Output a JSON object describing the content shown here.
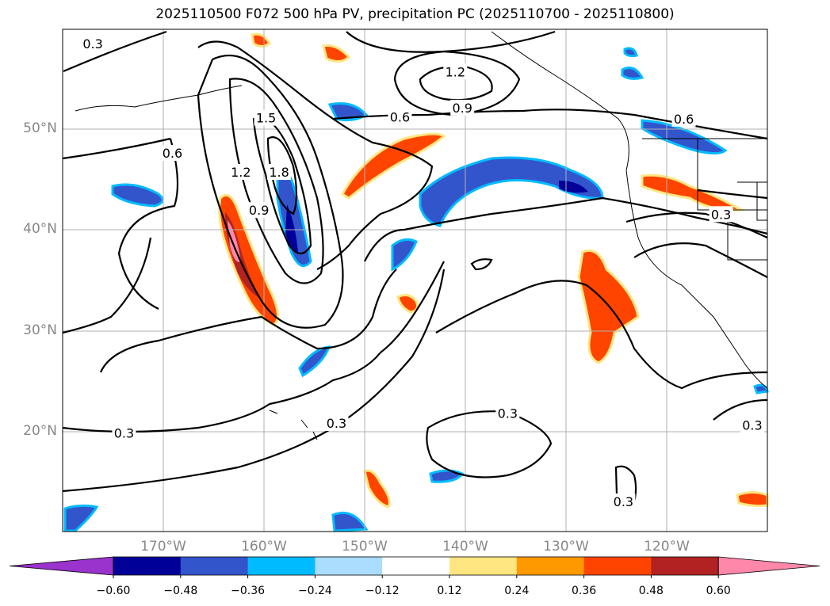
{
  "title": "2025110500 F072 500 hPa PV, precipitation PC (2025110700 - 2025110800)",
  "map": {
    "lat_ticks": [
      "50°N",
      "40°N",
      "30°N",
      "20°N"
    ],
    "lon_ticks": [
      "170°W",
      "160°W",
      "150°W",
      "140°W",
      "130°W",
      "120°W"
    ],
    "lat_values": [
      50,
      40,
      30,
      20
    ],
    "lon_values": [
      -170,
      -160,
      -150,
      -140,
      -130,
      -120
    ],
    "lat_range": [
      10,
      60
    ],
    "lon_range": [
      -180,
      -110
    ],
    "pv_contour_labels": [
      {
        "text": "0.3",
        "lon": -177,
        "lat": 58.6
      },
      {
        "text": "1.2",
        "lon": -141,
        "lat": 55.8
      },
      {
        "text": "0.9",
        "lon": -140.3,
        "lat": 52.2
      },
      {
        "text": "0.6",
        "lon": -146.5,
        "lat": 51.3
      },
      {
        "text": "0.6",
        "lon": -118.3,
        "lat": 51.1
      },
      {
        "text": "1.5",
        "lon": -159.8,
        "lat": 51.2
      },
      {
        "text": "0.6",
        "lon": -169.1,
        "lat": 47.7
      },
      {
        "text": "1.8",
        "lon": -158.5,
        "lat": 45.8
      },
      {
        "text": "1.2",
        "lon": -162.3,
        "lat": 45.8
      },
      {
        "text": "0.9",
        "lon": -160.5,
        "lat": 42.0
      },
      {
        "text": "0.3",
        "lon": -114.6,
        "lat": 41.6
      },
      {
        "text": "0.3",
        "lon": -173.9,
        "lat": 19.8
      },
      {
        "text": "0.3",
        "lon": -152.8,
        "lat": 20.8
      },
      {
        "text": "0.3",
        "lon": -135.8,
        "lat": 21.8
      },
      {
        "text": "0.3",
        "lon": -111.5,
        "lat": 20.6
      },
      {
        "text": "0.3",
        "lon": -124.3,
        "lat": 13.0
      }
    ]
  },
  "colorbar": {
    "labels": [
      "−0.60",
      "−0.48",
      "−0.36",
      "−0.24",
      "−0.12",
      "0.12",
      "0.24",
      "0.36",
      "0.48",
      "0.60"
    ],
    "colors": [
      "#9933cc",
      "#000099",
      "#3355cc",
      "#00bbff",
      "#aaddff",
      "#ffffff",
      "#ffe680",
      "#ff9900",
      "#ff4400",
      "#b22222",
      "#ff88aa"
    ]
  }
}
